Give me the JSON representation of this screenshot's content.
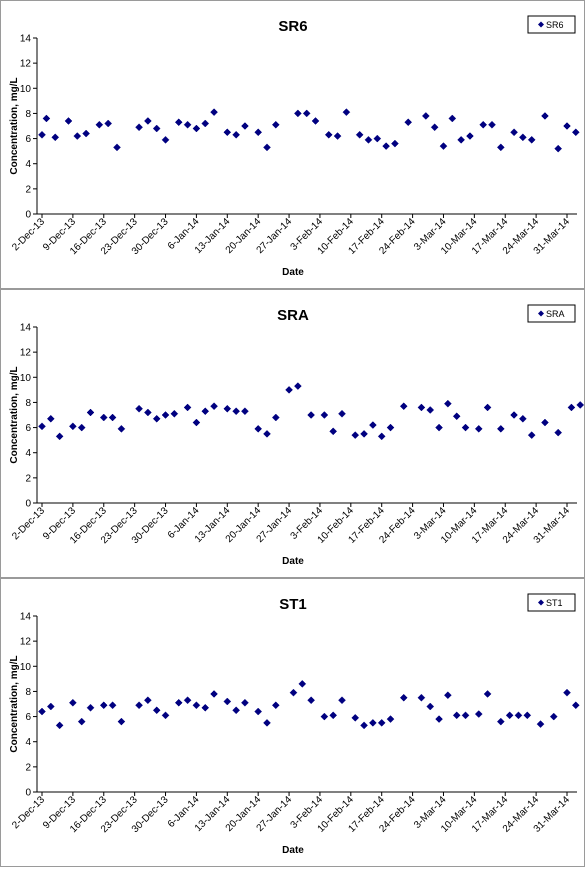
{
  "chart_data": [
    {
      "type": "scatter",
      "title": "SR6",
      "xlabel": "Date",
      "ylabel": "Concentration, mg/L",
      "legend": "top-right",
      "ylim": [
        0,
        14
      ],
      "yticks": [
        0,
        2,
        4,
        6,
        8,
        10,
        12,
        14
      ],
      "xlim": [
        "2013-12-02",
        "2014-03-31"
      ],
      "xtick_labels": [
        "2-Dec-13",
        "9-Dec-13",
        "16-Dec-13",
        "23-Dec-13",
        "30-Dec-13",
        "6-Jan-14",
        "13-Jan-14",
        "20-Jan-14",
        "27-Jan-14",
        "3-Feb-14",
        "10-Feb-14",
        "17-Feb-14",
        "24-Feb-14",
        "3-Mar-14",
        "10-Mar-14",
        "17-Mar-14",
        "24-Mar-14",
        "31-Mar-14"
      ],
      "series": [
        {
          "name": "SR6",
          "color": "#000080",
          "x": [
            "2013-12-02",
            "2013-12-03",
            "2013-12-05",
            "2013-12-08",
            "2013-12-10",
            "2013-12-12",
            "2013-12-15",
            "2013-12-17",
            "2013-12-19",
            "2013-12-24",
            "2013-12-26",
            "2013-12-28",
            "2013-12-30",
            "2014-01-02",
            "2014-01-04",
            "2014-01-06",
            "2014-01-08",
            "2014-01-10",
            "2014-01-13",
            "2014-01-15",
            "2014-01-17",
            "2014-01-20",
            "2014-01-22",
            "2014-01-24",
            "2014-01-29",
            "2014-01-31",
            "2014-02-02",
            "2014-02-05",
            "2014-02-07",
            "2014-02-09",
            "2014-02-12",
            "2014-02-14",
            "2014-02-16",
            "2014-02-18",
            "2014-02-20",
            "2014-02-23",
            "2014-02-27",
            "2014-03-01",
            "2014-03-03",
            "2014-03-05",
            "2014-03-07",
            "2014-03-09",
            "2014-03-12",
            "2014-03-14",
            "2014-03-16",
            "2014-03-19",
            "2014-03-21",
            "2014-03-23",
            "2014-03-26",
            "2014-03-29",
            "2014-03-31",
            "2014-04-02"
          ],
          "y": [
            6.3,
            7.6,
            6.1,
            7.4,
            6.2,
            6.4,
            7.1,
            7.2,
            5.3,
            6.9,
            7.4,
            6.8,
            5.9,
            7.3,
            7.1,
            6.8,
            7.2,
            8.1,
            6.5,
            6.3,
            7.0,
            6.5,
            5.3,
            7.1,
            8.0,
            8.0,
            7.4,
            6.3,
            6.2,
            8.1,
            6.3,
            5.9,
            6.0,
            5.4,
            5.6,
            7.3,
            7.8,
            6.9,
            5.4,
            7.6,
            5.9,
            6.2,
            7.1,
            7.1,
            5.3,
            6.5,
            6.1,
            5.9,
            7.8,
            5.2,
            7.0,
            6.5
          ]
        }
      ]
    },
    {
      "type": "scatter",
      "title": "SRA",
      "xlabel": "Date",
      "ylabel": "Concentration, mg/L",
      "legend": "top-right",
      "ylim": [
        0,
        14
      ],
      "yticks": [
        0,
        2,
        4,
        6,
        8,
        10,
        12,
        14
      ],
      "xlim": [
        "2013-12-02",
        "2014-03-31"
      ],
      "xtick_labels": [
        "2-Dec-13",
        "9-Dec-13",
        "16-Dec-13",
        "23-Dec-13",
        "30-Dec-13",
        "6-Jan-14",
        "13-Jan-14",
        "20-Jan-14",
        "27-Jan-14",
        "3-Feb-14",
        "10-Feb-14",
        "17-Feb-14",
        "24-Feb-14",
        "3-Mar-14",
        "10-Mar-14",
        "17-Mar-14",
        "24-Mar-14",
        "31-Mar-14"
      ],
      "series": [
        {
          "name": "SRA",
          "color": "#000080",
          "x": [
            "2013-12-02",
            "2013-12-04",
            "2013-12-06",
            "2013-12-09",
            "2013-12-11",
            "2013-12-13",
            "2013-12-16",
            "2013-12-18",
            "2013-12-20",
            "2013-12-24",
            "2013-12-26",
            "2013-12-28",
            "2013-12-30",
            "2014-01-01",
            "2014-01-04",
            "2014-01-06",
            "2014-01-08",
            "2014-01-10",
            "2014-01-13",
            "2014-01-15",
            "2014-01-17",
            "2014-01-20",
            "2014-01-22",
            "2014-01-24",
            "2014-01-27",
            "2014-01-29",
            "2014-02-01",
            "2014-02-04",
            "2014-02-06",
            "2014-02-08",
            "2014-02-11",
            "2014-02-13",
            "2014-02-15",
            "2014-02-17",
            "2014-02-19",
            "2014-02-22",
            "2014-02-26",
            "2014-02-28",
            "2014-03-02",
            "2014-03-04",
            "2014-03-06",
            "2014-03-08",
            "2014-03-11",
            "2014-03-13",
            "2014-03-16",
            "2014-03-19",
            "2014-03-21",
            "2014-03-23",
            "2014-03-26",
            "2014-03-29",
            "2014-04-01",
            "2014-04-03"
          ],
          "y": [
            6.1,
            6.7,
            5.3,
            6.1,
            6.0,
            7.2,
            6.8,
            6.8,
            5.9,
            7.5,
            7.2,
            6.7,
            7.0,
            7.1,
            7.6,
            6.4,
            7.3,
            7.7,
            7.5,
            7.3,
            7.3,
            5.9,
            5.5,
            6.8,
            9.0,
            9.3,
            7.0,
            7.0,
            5.7,
            7.1,
            5.4,
            5.5,
            6.2,
            5.3,
            6.0,
            7.7,
            7.6,
            7.4,
            6.0,
            7.9,
            6.9,
            6.0,
            5.9,
            7.6,
            5.9,
            7.0,
            6.7,
            5.4,
            6.4,
            5.6,
            7.6,
            7.8
          ]
        }
      ]
    },
    {
      "type": "scatter",
      "title": "ST1",
      "xlabel": "Date",
      "ylabel": "Concentration, mg/L",
      "legend": "top-right",
      "ylim": [
        0,
        14
      ],
      "yticks": [
        0,
        2,
        4,
        6,
        8,
        10,
        12,
        14
      ],
      "xlim": [
        "2013-12-02",
        "2014-03-31"
      ],
      "xtick_labels": [
        "2-Dec-13",
        "9-Dec-13",
        "16-Dec-13",
        "23-Dec-13",
        "30-Dec-13",
        "6-Jan-14",
        "13-Jan-14",
        "20-Jan-14",
        "27-Jan-14",
        "3-Feb-14",
        "10-Feb-14",
        "17-Feb-14",
        "24-Feb-14",
        "3-Mar-14",
        "10-Mar-14",
        "17-Mar-14",
        "24-Mar-14",
        "31-Mar-14"
      ],
      "series": [
        {
          "name": "ST1",
          "color": "#000080",
          "x": [
            "2013-12-02",
            "2013-12-04",
            "2013-12-06",
            "2013-12-09",
            "2013-12-11",
            "2013-12-13",
            "2013-12-16",
            "2013-12-18",
            "2013-12-20",
            "2013-12-24",
            "2013-12-26",
            "2013-12-28",
            "2013-12-30",
            "2014-01-02",
            "2014-01-04",
            "2014-01-06",
            "2014-01-08",
            "2014-01-10",
            "2014-01-13",
            "2014-01-15",
            "2014-01-17",
            "2014-01-20",
            "2014-01-22",
            "2014-01-24",
            "2014-01-28",
            "2014-01-30",
            "2014-02-01",
            "2014-02-04",
            "2014-02-06",
            "2014-02-08",
            "2014-02-11",
            "2014-02-13",
            "2014-02-15",
            "2014-02-17",
            "2014-02-19",
            "2014-02-22",
            "2014-02-26",
            "2014-02-28",
            "2014-03-02",
            "2014-03-04",
            "2014-03-06",
            "2014-03-08",
            "2014-03-11",
            "2014-03-13",
            "2014-03-16",
            "2014-03-18",
            "2014-03-20",
            "2014-03-22",
            "2014-03-25",
            "2014-03-28",
            "2014-03-31",
            "2014-04-02"
          ],
          "y": [
            6.4,
            6.8,
            5.3,
            7.1,
            5.6,
            6.7,
            6.9,
            6.9,
            5.6,
            6.9,
            7.3,
            6.5,
            6.1,
            7.1,
            7.3,
            6.9,
            6.7,
            7.8,
            7.2,
            6.5,
            7.1,
            6.4,
            5.5,
            6.9,
            7.9,
            8.6,
            7.3,
            6.0,
            6.1,
            7.3,
            5.9,
            5.3,
            5.5,
            5.5,
            5.8,
            7.5,
            7.5,
            6.8,
            5.8,
            7.7,
            6.1,
            6.1,
            6.2,
            7.8,
            5.6,
            6.1,
            6.1,
            6.1,
            5.4,
            6.0,
            7.9,
            6.9
          ]
        }
      ]
    }
  ]
}
